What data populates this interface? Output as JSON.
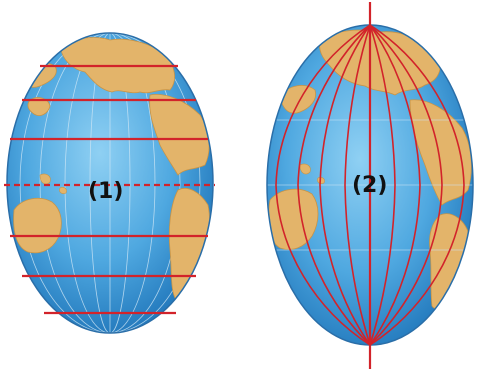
{
  "globes": [
    {
      "id": "globe-1",
      "label": "(1)",
      "lines_shown": "parallels",
      "parallel_count": 7,
      "equator_dashed": true
    },
    {
      "id": "globe-2",
      "label": "(2)",
      "lines_shown": "meridians",
      "meridian_count": 12,
      "axis_shown": true
    }
  ],
  "colors": {
    "ocean_light": "#5fb6e8",
    "ocean_dark": "#1f7fc4",
    "land": "#e3b46a",
    "land_edge": "#c99445",
    "grid_line": "#d2232a",
    "faint_grid": "#cfe6f5",
    "outline": "#2a6ea8"
  }
}
